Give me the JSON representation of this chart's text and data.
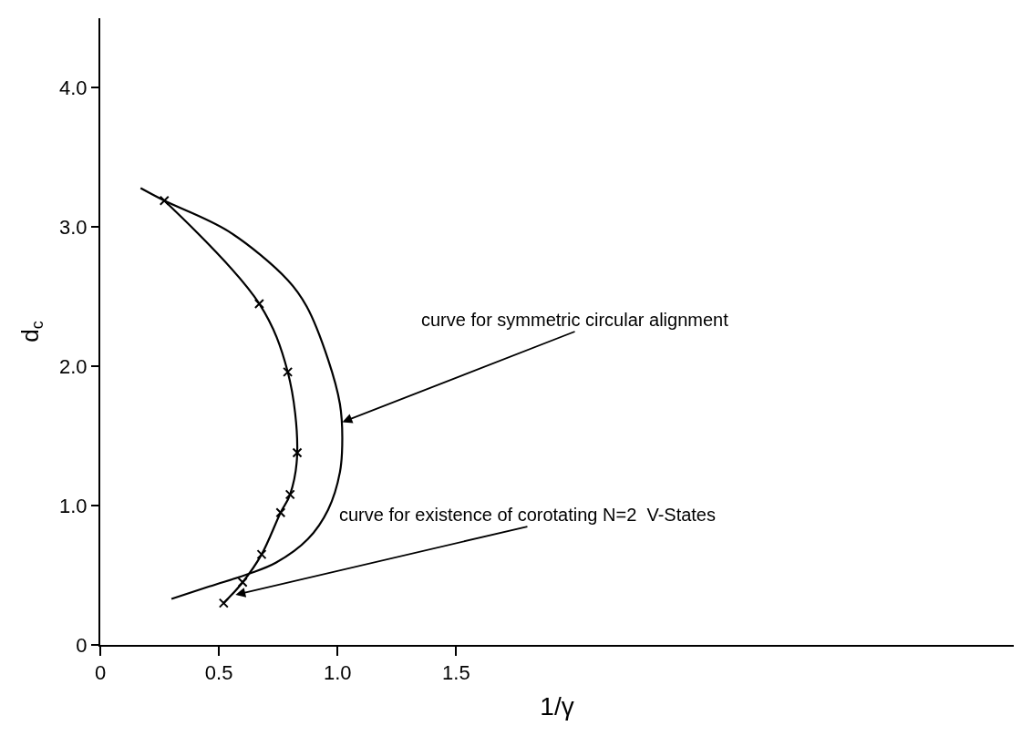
{
  "chart_data": {
    "type": "line",
    "xlabel": "1/γ",
    "ylabel": "d$_{c}$",
    "xlim": [
      0,
      3.85
    ],
    "ylim": [
      0,
      4.5
    ],
    "xticks": [
      0,
      {
        "value": 0.5,
        "label": "0.5"
      },
      {
        "value": 1.0,
        "label": "1.0"
      },
      {
        "value": 1.5,
        "label": "1.5"
      }
    ],
    "yticks": [
      0,
      {
        "value": 1.0,
        "label": "1.0"
      },
      {
        "value": 2.0,
        "label": "2.0"
      },
      {
        "value": 3.0,
        "label": "3.0"
      },
      {
        "value": 4.0,
        "label": "4.0"
      }
    ],
    "grid": false,
    "series": [
      {
        "color": "#000000",
        "marker": "none",
        "x": [
          0.17,
          0.27,
          0.54,
          0.79,
          0.87,
          0.96,
          1.01,
          1.02,
          1.01,
          0.96,
          0.875,
          0.74,
          0.625,
          0.46,
          0.3
        ],
        "values": [
          3.28,
          3.19,
          2.97,
          2.62,
          2.43,
          2.05,
          1.73,
          1.49,
          1.24,
          0.97,
          0.76,
          0.59,
          0.51,
          0.42,
          0.33
        ]
      },
      {
        "color": "#000000",
        "marker": "cross",
        "x": [
          0.27,
          0.67,
          0.79,
          0.83,
          0.8,
          0.76,
          0.68,
          0.6,
          0.52
        ],
        "values": [
          3.19,
          2.45,
          1.96,
          1.38,
          1.08,
          0.95,
          0.65,
          0.45,
          0.3
        ]
      }
    ],
    "annotations": [
      {
        "text": "curve for symmetric circular alignment",
        "x": 1.02,
        "y": 1.6
      },
      {
        "text": "curve for existence of corotating N=2  V-States",
        "x": 0.57,
        "y": 0.36
      }
    ]
  }
}
